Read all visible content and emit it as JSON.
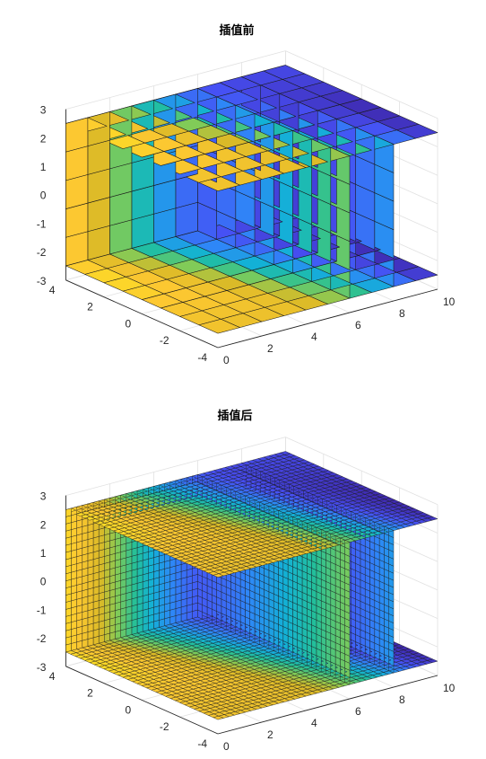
{
  "chart_data": [
    {
      "type": "surface3d",
      "title": "插值前",
      "xlabel": "",
      "ylabel": "",
      "zlabel": "",
      "xlim": [
        0,
        10
      ],
      "ylim": [
        -4,
        4
      ],
      "zlim": [
        -3,
        3
      ],
      "xticks": [
        0,
        2,
        4,
        6,
        8,
        10
      ],
      "yticks": [
        -4,
        -2,
        0,
        2,
        4
      ],
      "zticks": [
        -3,
        -2,
        -1,
        0,
        1,
        2,
        3
      ],
      "grid": true,
      "colormap": "parula",
      "mesh_spacing": 1,
      "slices": [
        {
          "plane": "z",
          "value": 2.5,
          "x": [
            0,
            10
          ],
          "y": [
            -4,
            4
          ]
        },
        {
          "plane": "z",
          "value": -2.5,
          "x": [
            0,
            10
          ],
          "y": [
            -4,
            4
          ]
        },
        {
          "plane": "y",
          "value": 4,
          "x": [
            0,
            6
          ],
          "z": [
            -2.5,
            2.5
          ]
        },
        {
          "plane": "x",
          "value": 6,
          "y": [
            -4,
            4
          ],
          "z": [
            -2.5,
            2.5
          ]
        },
        {
          "plane": "x",
          "value": 8,
          "y": [
            -4,
            4
          ],
          "z": [
            -2.5,
            2.5
          ]
        }
      ]
    },
    {
      "type": "surface3d",
      "title": "插值后",
      "xlabel": "",
      "ylabel": "",
      "zlabel": "",
      "xlim": [
        0,
        10
      ],
      "ylim": [
        -4,
        4
      ],
      "zlim": [
        -3,
        3
      ],
      "xticks": [
        0,
        2,
        4,
        6,
        8,
        10
      ],
      "yticks": [
        -4,
        -2,
        0,
        2,
        4
      ],
      "zticks": [
        -3,
        -2,
        -1,
        0,
        1,
        2,
        3
      ],
      "grid": true,
      "colormap": "parula",
      "mesh_spacing": 0.25,
      "slices": [
        {
          "plane": "z",
          "value": 2.5,
          "x": [
            0,
            10
          ],
          "y": [
            -4,
            4
          ]
        },
        {
          "plane": "z",
          "value": -2.5,
          "x": [
            0,
            10
          ],
          "y": [
            -4,
            4
          ]
        },
        {
          "plane": "y",
          "value": 4,
          "x": [
            0,
            6
          ],
          "z": [
            -2.5,
            2.5
          ]
        },
        {
          "plane": "x",
          "value": 6,
          "y": [
            -4,
            4
          ],
          "z": [
            -2.5,
            2.5
          ]
        },
        {
          "plane": "x",
          "value": 8,
          "y": [
            -4,
            4
          ],
          "z": [
            -2.5,
            2.5
          ]
        }
      ]
    }
  ]
}
